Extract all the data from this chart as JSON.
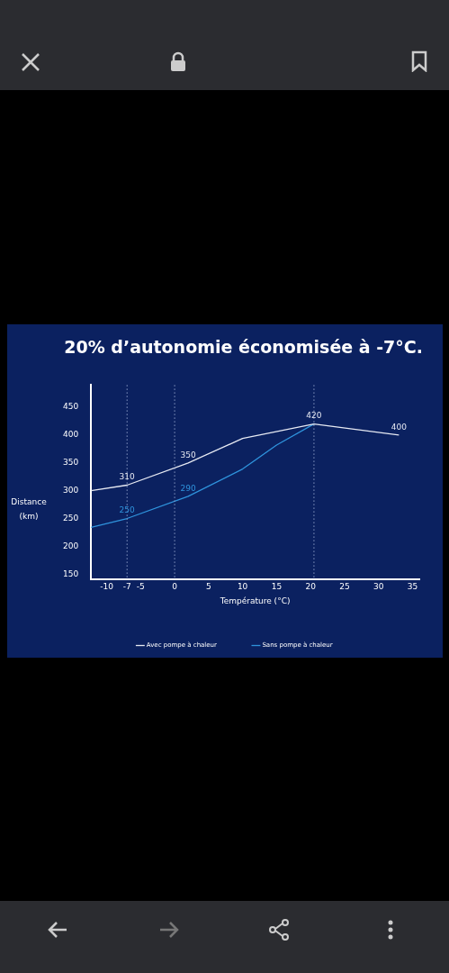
{
  "chart_data": {
    "type": "line",
    "title": "20% d’autonomie économisée à -7°C.",
    "xlabel": "Température (°C)",
    "ylabel": "Distance (km)",
    "xlim": [
      -12.3,
      36
    ],
    "xticks": [
      -10,
      -7,
      -5,
      0,
      5,
      10,
      15,
      20,
      25,
      30,
      35
    ],
    "ylim": [
      140,
      490
    ],
    "yticks": [
      150,
      200,
      250,
      300,
      350,
      400,
      450
    ],
    "grid": false,
    "legend": "bottom",
    "marker": "none",
    "line_style": "solid",
    "ref_lines": [
      {
        "axis": "x",
        "value": -7,
        "line_style": "dotted",
        "color": "#8a9bc4"
      },
      {
        "axis": "x",
        "value": 0,
        "line_style": "dotted",
        "color": "#8a9bc4"
      },
      {
        "axis": "x",
        "value": 20.5,
        "line_style": "dotted",
        "color": "#8a9bc4"
      }
    ],
    "series": [
      {
        "name": "Avec pompe à chaleur",
        "color": "#e6e9f2",
        "x": [
          -12.3,
          -7,
          2,
          10,
          20.5,
          33
        ],
        "values": [
          300,
          310,
          350,
          394,
          420,
          400
        ],
        "value_labels": [
          null,
          "310",
          "350",
          null,
          "420",
          "400"
        ]
      },
      {
        "name": "Sans pompe à chaleur",
        "color": "#2f93dc",
        "x": [
          -12.3,
          -7,
          2,
          10,
          15,
          20.5
        ],
        "values": [
          234,
          250,
          290,
          339,
          382,
          420
        ],
        "value_labels": [
          null,
          "250",
          "290",
          null,
          null,
          null
        ]
      }
    ]
  }
}
